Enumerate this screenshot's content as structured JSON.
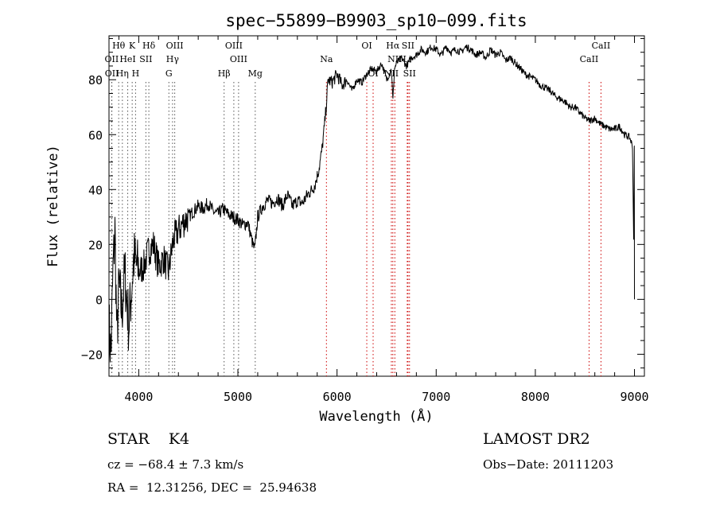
{
  "chart_data": {
    "type": "line",
    "title": "spec−55899−B9903_sp10−099.fits",
    "xlabel": "Wavelength (Å)",
    "ylabel": "Flux (relative)",
    "xlim": [
      3700,
      9100
    ],
    "ylim": [
      -28,
      96
    ],
    "xticks": [
      4000,
      5000,
      6000,
      7000,
      8000,
      9000
    ],
    "yticks": [
      -20,
      0,
      20,
      40,
      60,
      80
    ],
    "grid": false,
    "series": [
      {
        "x": [
          3700,
          3720,
          3740,
          3760,
          3780,
          3800,
          3830,
          3860,
          3900,
          3950,
          4000,
          4050,
          4100,
          4150,
          4200,
          4250,
          4300,
          4350,
          4400,
          4450,
          4500,
          4550,
          4600,
          4650,
          4700,
          4750,
          4800,
          4850,
          4900,
          4950,
          5000,
          5050,
          5100,
          5150,
          5170,
          5200,
          5250,
          5300,
          5350,
          5400,
          5450,
          5500,
          5550,
          5600,
          5650,
          5700,
          5750,
          5780,
          5800,
          5820,
          5850,
          5870,
          5890,
          5910,
          5950,
          6000,
          6050,
          6100,
          6150,
          6200,
          6250,
          6300,
          6350,
          6400,
          6450,
          6500,
          6550,
          6563,
          6580,
          6600,
          6650,
          6700,
          6750,
          6800,
          6850,
          6900,
          6950,
          7000,
          7050,
          7100,
          7150,
          7200,
          7250,
          7300,
          7350,
          7400,
          7450,
          7500,
          7550,
          7600,
          7650,
          7700,
          7750,
          7800,
          7850,
          7900,
          7950,
          8000,
          8050,
          8100,
          8150,
          8200,
          8250,
          8300,
          8350,
          8400,
          8450,
          8500,
          8550,
          8600,
          8650,
          8700,
          8750,
          8800,
          8850,
          8900,
          8950,
          8980,
          9000
        ],
        "y": [
          -10,
          -20,
          10,
          25,
          -15,
          5,
          -5,
          10,
          -10,
          15,
          10,
          12,
          18,
          20,
          12,
          15,
          10,
          22,
          25,
          28,
          30,
          32,
          34,
          33,
          35,
          32,
          31,
          33,
          31,
          30,
          29,
          27,
          28,
          20,
          18,
          30,
          34,
          36,
          35,
          37,
          34,
          38,
          34,
          36,
          35,
          38,
          40,
          42,
          45,
          48,
          55,
          62,
          70,
          80,
          79,
          82,
          78,
          80,
          76,
          80,
          79,
          82,
          84,
          83,
          86,
          80,
          84,
          72,
          84,
          86,
          88,
          85,
          88,
          89,
          91,
          90,
          92,
          91,
          89,
          92,
          90,
          91,
          90,
          92,
          91,
          89,
          90,
          88,
          91,
          89,
          90,
          87,
          88,
          86,
          84,
          82,
          81,
          80,
          78,
          77,
          76,
          74,
          73,
          72,
          70,
          70,
          68,
          66,
          65,
          66,
          64,
          63,
          62,
          62,
          63,
          60,
          59,
          56,
          0
        ]
      }
    ],
    "lines": [
      {
        "label": "Hθ",
        "x": 3798,
        "row": 0
      },
      {
        "label": "K",
        "x": 3934,
        "row": 0
      },
      {
        "label": "Hδ",
        "x": 4102,
        "row": 0
      },
      {
        "label": "OIII",
        "x": 4363,
        "row": 0
      },
      {
        "label": "OIII",
        "x": 4959,
        "row": 0
      },
      {
        "label": "OI",
        "x": 6300,
        "row": 0
      },
      {
        "label": "Hα",
        "x": 6563,
        "row": 0
      },
      {
        "label": "SII",
        "x": 6716,
        "row": 0
      },
      {
        "label": "CaII",
        "x": 8662,
        "row": 0
      },
      {
        "label": "OII",
        "x": 3727,
        "row": 1
      },
      {
        "label": "HeI",
        "x": 3889,
        "row": 1
      },
      {
        "label": "SII",
        "x": 4072,
        "row": 1
      },
      {
        "label": "Hγ",
        "x": 4341,
        "row": 1
      },
      {
        "label": "OIII",
        "x": 5007,
        "row": 1
      },
      {
        "label": "Na",
        "x": 5893,
        "row": 1
      },
      {
        "label": "NII",
        "x": 6583,
        "row": 1
      },
      {
        "label": "Li",
        "x": 6708,
        "row": 1
      },
      {
        "label": "CaII",
        "x": 8542,
        "row": 1
      },
      {
        "label": "OII",
        "x": 3729,
        "row": 2
      },
      {
        "label": "Hη",
        "x": 3835,
        "row": 2
      },
      {
        "label": "H",
        "x": 3968,
        "row": 2
      },
      {
        "label": "G",
        "x": 4304,
        "row": 2
      },
      {
        "label": "Hβ",
        "x": 4861,
        "row": 2
      },
      {
        "label": "Mg",
        "x": 5175,
        "row": 2
      },
      {
        "label": "OI",
        "x": 6364,
        "row": 2
      },
      {
        "label": "NII",
        "x": 6548,
        "row": 2
      },
      {
        "label": "SII",
        "x": 6731,
        "row": 2
      }
    ]
  },
  "info": {
    "class": "STAR    K4",
    "survey": "LAMOST DR2",
    "cz": "cz = −68.4 ± 7.3 km/s",
    "obsdate": "Obs−Date: 20111203",
    "radec": "RA =  12.31256, DEC =  25.94638"
  }
}
